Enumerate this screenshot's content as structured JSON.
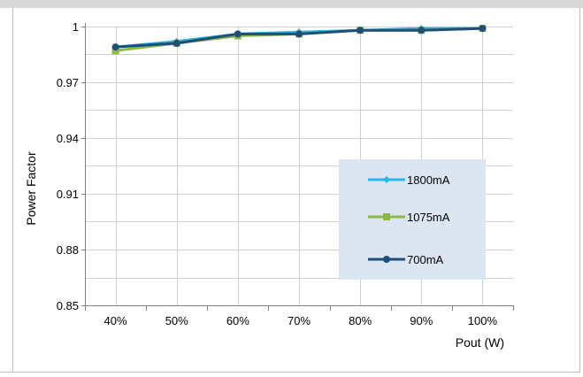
{
  "chart_data": {
    "type": "line",
    "title": "",
    "xlabel": "Pout (W)",
    "ylabel": "Power Factor",
    "categories": [
      "40%",
      "50%",
      "60%",
      "70%",
      "80%",
      "90%",
      "100%"
    ],
    "ylim": [
      0.85,
      1.0
    ],
    "yticks": [
      0.85,
      0.88,
      0.91,
      0.94,
      0.97,
      1.0
    ],
    "ytick_labels": [
      "0.85",
      "0.88",
      "0.91",
      "0.94",
      "0.97",
      "1"
    ],
    "grid": true,
    "legend_position": "center-right",
    "series": [
      {
        "name": "1800mA",
        "color": "#29b6e8",
        "marker": "diamond",
        "values": [
          0.989,
          0.992,
          0.996,
          0.997,
          0.998,
          0.999,
          0.999
        ]
      },
      {
        "name": "1075mA",
        "color": "#8db84a",
        "marker": "square",
        "values": [
          0.987,
          0.991,
          0.995,
          0.996,
          0.998,
          0.998,
          0.999
        ]
      },
      {
        "name": "700mA",
        "color": "#1f4e79",
        "marker": "circle",
        "values": [
          0.989,
          0.991,
          0.996,
          0.996,
          0.998,
          0.998,
          0.999
        ]
      }
    ]
  }
}
